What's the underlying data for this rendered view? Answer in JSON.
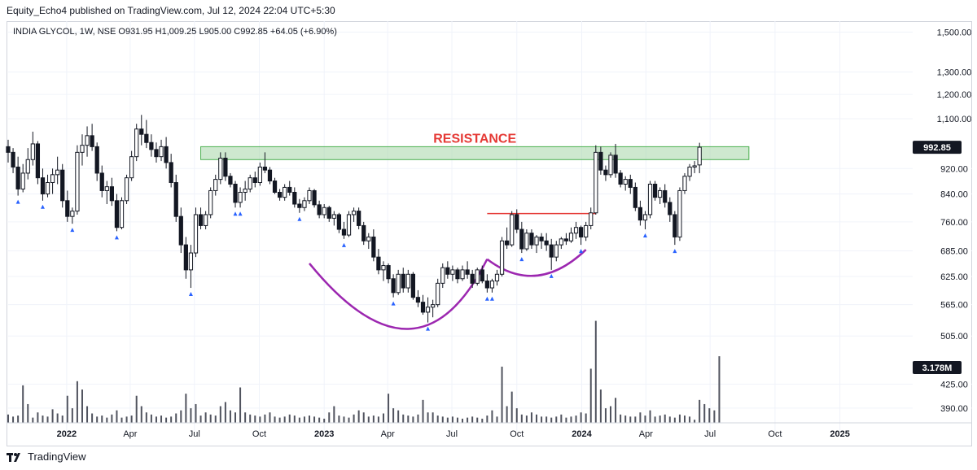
{
  "header": {
    "published": "Equity_Echo4 published on TradingView.com, Jul 12, 2024 22:04 UTC+5:30",
    "legend": "INDIA GLYCOL, 1W, NSE  O931.95  H1,009.25  L905.00  C992.85  +64.05 (+6.90%)"
  },
  "footer": {
    "brand": "TradingView",
    "logo_icon": "tradingview-logo-icon"
  },
  "colors": {
    "up": "#ffffff",
    "down": "#131722",
    "wick": "#131722",
    "resistance_fill": "#a5d6a7",
    "resistance_stroke": "#4caf50",
    "resistance_text": "#e53935",
    "cup": "#9c27b0",
    "handle_line": "#e53935",
    "marker": "#2962ff",
    "volume": "#50535e",
    "grid": "#f0f3fa",
    "axis_text": "#131722"
  },
  "chart_data": {
    "type": "candlestick",
    "scale": "log",
    "ylim": [
      370,
      1560
    ],
    "xlim": [
      "2021-10-10",
      "2025-04-13"
    ],
    "y_ticks": [
      {
        "value": 1500,
        "label": "1,500.00"
      },
      {
        "value": 1300,
        "label": "1,300.00"
      },
      {
        "value": 1200,
        "label": "1,200.00"
      },
      {
        "value": 1100,
        "label": "1,100.00"
      },
      {
        "value": 920,
        "label": "920.00"
      },
      {
        "value": 840,
        "label": "840.00"
      },
      {
        "value": 760,
        "label": "760.00"
      },
      {
        "value": 685,
        "label": "685.00"
      },
      {
        "value": 625,
        "label": "625.00"
      },
      {
        "value": 565,
        "label": "565.00"
      },
      {
        "value": 505,
        "label": "505.00"
      },
      {
        "value": 425,
        "label": "425.00"
      },
      {
        "value": 390,
        "label": "390.00"
      }
    ],
    "x_ticks": [
      {
        "date": "2022-01-01",
        "label": "2022",
        "bold": true
      },
      {
        "date": "2022-04-01",
        "label": "Apr",
        "bold": false
      },
      {
        "date": "2022-07-01",
        "label": "Jul",
        "bold": false
      },
      {
        "date": "2022-10-01",
        "label": "Oct",
        "bold": false
      },
      {
        "date": "2023-01-01",
        "label": "2023",
        "bold": true
      },
      {
        "date": "2023-04-01",
        "label": "Apr",
        "bold": false
      },
      {
        "date": "2023-07-01",
        "label": "Jul",
        "bold": false
      },
      {
        "date": "2023-10-01",
        "label": "Oct",
        "bold": false
      },
      {
        "date": "2024-01-01",
        "label": "2024",
        "bold": true
      },
      {
        "date": "2024-04-01",
        "label": "Apr",
        "bold": false
      },
      {
        "date": "2024-07-01",
        "label": "Jul",
        "bold": false
      },
      {
        "date": "2024-10-01",
        "label": "Oct",
        "bold": false
      },
      {
        "date": "2025-01-01",
        "label": "2025",
        "bold": true
      }
    ],
    "last_price": {
      "value": 992.85,
      "label": "992.85"
    },
    "last_volume_label": "3.178M",
    "annotations": [
      {
        "kind": "zone",
        "label": "RESISTANCE",
        "from": "2022-07-10",
        "to": "2024-08-25",
        "low": 950,
        "high": 995
      },
      {
        "kind": "hline",
        "from": "2023-08-20",
        "to": "2024-01-21",
        "value": 783
      },
      {
        "kind": "arc",
        "from": "2022-12-11",
        "to": "2023-08-20",
        "start": 655,
        "bottom": 518,
        "end": 665,
        "through": "2023-04-30"
      },
      {
        "kind": "arc",
        "from": "2023-08-20",
        "to": "2024-01-07",
        "start": 665,
        "bottom": 627,
        "end": 688,
        "through": "2023-10-29"
      }
    ],
    "ohlc_start": "2021-10-10",
    "ohlc": [
      [
        995,
        1020,
        940,
        975
      ],
      [
        975,
        990,
        905,
        925
      ],
      [
        925,
        960,
        835,
        855
      ],
      [
        855,
        935,
        845,
        905
      ],
      [
        905,
        990,
        885,
        950
      ],
      [
        950,
        1050,
        930,
        1005
      ],
      [
        1005,
        1015,
        870,
        890
      ],
      [
        890,
        920,
        820,
        840
      ],
      [
        840,
        900,
        830,
        875
      ],
      [
        875,
        920,
        840,
        900
      ],
      [
        900,
        960,
        870,
        915
      ],
      [
        915,
        935,
        800,
        820
      ],
      [
        820,
        850,
        760,
        775
      ],
      [
        775,
        800,
        755,
        790
      ],
      [
        790,
        1000,
        780,
        975
      ],
      [
        975,
        1040,
        930,
        1000
      ],
      [
        1000,
        1070,
        960,
        1035
      ],
      [
        1035,
        1080,
        980,
        995
      ],
      [
        995,
        1010,
        880,
        905
      ],
      [
        905,
        930,
        830,
        850
      ],
      [
        850,
        880,
        810,
        862
      ],
      [
        862,
        890,
        805,
        820
      ],
      [
        820,
        840,
        735,
        745
      ],
      [
        745,
        830,
        740,
        820
      ],
      [
        820,
        900,
        810,
        890
      ],
      [
        890,
        980,
        880,
        960
      ],
      [
        960,
        1080,
        945,
        1060
      ],
      [
        1060,
        1115,
        1000,
        1040
      ],
      [
        1040,
        1095,
        990,
        1010
      ],
      [
        1010,
        1040,
        960,
        985
      ],
      [
        985,
        1010,
        940,
        960
      ],
      [
        960,
        1020,
        945,
        995
      ],
      [
        995,
        1030,
        920,
        940
      ],
      [
        940,
        970,
        860,
        875
      ],
      [
        875,
        900,
        760,
        775
      ],
      [
        775,
        800,
        680,
        700
      ],
      [
        700,
        720,
        620,
        640
      ],
      [
        640,
        700,
        600,
        680
      ],
      [
        680,
        800,
        670,
        780
      ],
      [
        780,
        800,
        740,
        750
      ],
      [
        750,
        790,
        740,
        780
      ],
      [
        780,
        860,
        770,
        850
      ],
      [
        850,
        900,
        835,
        885
      ],
      [
        885,
        975,
        870,
        955
      ],
      [
        955,
        975,
        880,
        895
      ],
      [
        895,
        905,
        860,
        870
      ],
      [
        870,
        880,
        800,
        815
      ],
      [
        815,
        860,
        800,
        845
      ],
      [
        845,
        880,
        820,
        855
      ],
      [
        855,
        900,
        845,
        890
      ],
      [
        890,
        910,
        860,
        875
      ],
      [
        875,
        940,
        865,
        925
      ],
      [
        925,
        975,
        905,
        915
      ],
      [
        915,
        925,
        870,
        880
      ],
      [
        880,
        890,
        840,
        845
      ],
      [
        845,
        855,
        820,
        830
      ],
      [
        830,
        870,
        820,
        860
      ],
      [
        860,
        880,
        835,
        845
      ],
      [
        845,
        860,
        800,
        810
      ],
      [
        810,
        825,
        785,
        800
      ],
      [
        800,
        830,
        790,
        820
      ],
      [
        820,
        860,
        810,
        850
      ],
      [
        850,
        855,
        800,
        808
      ],
      [
        808,
        820,
        770,
        780
      ],
      [
        780,
        810,
        770,
        800
      ],
      [
        800,
        805,
        760,
        770
      ],
      [
        770,
        790,
        750,
        780
      ],
      [
        780,
        785,
        730,
        740
      ],
      [
        740,
        760,
        715,
        725
      ],
      [
        725,
        790,
        720,
        780
      ],
      [
        780,
        800,
        760,
        790
      ],
      [
        790,
        800,
        740,
        750
      ],
      [
        750,
        760,
        700,
        710
      ],
      [
        710,
        730,
        690,
        720
      ],
      [
        720,
        740,
        660,
        670
      ],
      [
        670,
        690,
        630,
        640
      ],
      [
        640,
        660,
        615,
        650
      ],
      [
        650,
        655,
        610,
        620
      ],
      [
        620,
        630,
        580,
        590
      ],
      [
        590,
        640,
        585,
        630
      ],
      [
        630,
        645,
        590,
        600
      ],
      [
        600,
        640,
        590,
        630
      ],
      [
        630,
        635,
        575,
        580
      ],
      [
        580,
        595,
        560,
        570
      ],
      [
        570,
        585,
        545,
        550
      ],
      [
        550,
        580,
        530,
        560
      ],
      [
        560,
        575,
        540,
        565
      ],
      [
        565,
        620,
        560,
        610
      ],
      [
        610,
        655,
        600,
        645
      ],
      [
        645,
        660,
        620,
        630
      ],
      [
        630,
        650,
        615,
        640
      ],
      [
        640,
        645,
        610,
        620
      ],
      [
        620,
        650,
        615,
        640
      ],
      [
        640,
        660,
        620,
        630
      ],
      [
        630,
        640,
        600,
        610
      ],
      [
        610,
        645,
        605,
        640
      ],
      [
        640,
        650,
        610,
        615
      ],
      [
        615,
        630,
        590,
        600
      ],
      [
        600,
        620,
        590,
        615
      ],
      [
        615,
        640,
        605,
        630
      ],
      [
        630,
        720,
        625,
        710
      ],
      [
        710,
        745,
        690,
        700
      ],
      [
        700,
        790,
        695,
        780
      ],
      [
        780,
        795,
        730,
        740
      ],
      [
        740,
        760,
        680,
        690
      ],
      [
        690,
        740,
        685,
        730
      ],
      [
        730,
        740,
        690,
        700
      ],
      [
        700,
        725,
        680,
        720
      ],
      [
        720,
        730,
        690,
        710
      ],
      [
        710,
        730,
        685,
        700
      ],
      [
        700,
        715,
        640,
        670
      ],
      [
        670,
        710,
        660,
        700
      ],
      [
        700,
        720,
        690,
        715
      ],
      [
        715,
        730,
        700,
        710
      ],
      [
        710,
        745,
        705,
        730
      ],
      [
        730,
        760,
        715,
        745
      ],
      [
        745,
        750,
        700,
        720
      ],
      [
        720,
        760,
        710,
        750
      ],
      [
        750,
        800,
        740,
        785
      ],
      [
        785,
        1000,
        780,
        975
      ],
      [
        975,
        995,
        900,
        915
      ],
      [
        915,
        930,
        880,
        900
      ],
      [
        900,
        975,
        890,
        965
      ],
      [
        965,
        1005,
        890,
        905
      ],
      [
        905,
        915,
        860,
        870
      ],
      [
        870,
        895,
        850,
        885
      ],
      [
        885,
        900,
        840,
        860
      ],
      [
        860,
        875,
        790,
        800
      ],
      [
        800,
        820,
        750,
        765
      ],
      [
        765,
        790,
        740,
        780
      ],
      [
        780,
        880,
        770,
        870
      ],
      [
        870,
        880,
        820,
        830
      ],
      [
        830,
        860,
        810,
        850
      ],
      [
        850,
        870,
        800,
        815
      ],
      [
        815,
        830,
        760,
        780
      ],
      [
        780,
        790,
        700,
        720
      ],
      [
        720,
        860,
        710,
        850
      ],
      [
        850,
        905,
        840,
        895
      ],
      [
        895,
        935,
        880,
        925
      ],
      [
        925,
        945,
        905,
        929
      ],
      [
        932,
        1009,
        905,
        993
      ]
    ],
    "volume_max": 5000000,
    "volume": [
      400000,
      300000,
      350000,
      1800000,
      900000,
      250000,
      500000,
      350000,
      300000,
      650000,
      450000,
      350000,
      1300000,
      700000,
      2000000,
      1600000,
      800000,
      450000,
      300000,
      350000,
      250000,
      400000,
      600000,
      250000,
      300000,
      350000,
      1300000,
      800000,
      500000,
      400000,
      300000,
      350000,
      250000,
      300000,
      450000,
      600000,
      1400000,
      700000,
      900000,
      350000,
      500000,
      400000,
      350000,
      800000,
      1000000,
      600000,
      500000,
      1700000,
      500000,
      400000,
      350000,
      300000,
      400000,
      500000,
      300000,
      250000,
      300000,
      400000,
      350000,
      250000,
      300000,
      350000,
      300000,
      250000,
      200000,
      500000,
      800000,
      350000,
      300000,
      250000,
      400000,
      600000,
      500000,
      300000,
      350000,
      300000,
      450000,
      1400000,
      700000,
      600000,
      400000,
      350000,
      300000,
      400000,
      1100000,
      500000,
      500000,
      350000,
      300000,
      250000,
      300000,
      250000,
      200000,
      250000,
      300000,
      250000,
      200000,
      350000,
      600000,
      300000,
      2700000,
      800000,
      1500000,
      700000,
      400000,
      350000,
      500000,
      400000,
      300000,
      300000,
      250000,
      300000,
      400000,
      250000,
      300000,
      350000,
      500000,
      450000,
      2600000,
      4900000,
      1600000,
      700000,
      800000,
      1200000,
      400000,
      350000,
      300000,
      300000,
      500000,
      350000,
      600000,
      300000,
      350000,
      400000,
      300000,
      250000,
      400000,
      350000,
      300000,
      150000,
      1100000,
      900000,
      700000,
      600000,
      3200000
    ]
  }
}
